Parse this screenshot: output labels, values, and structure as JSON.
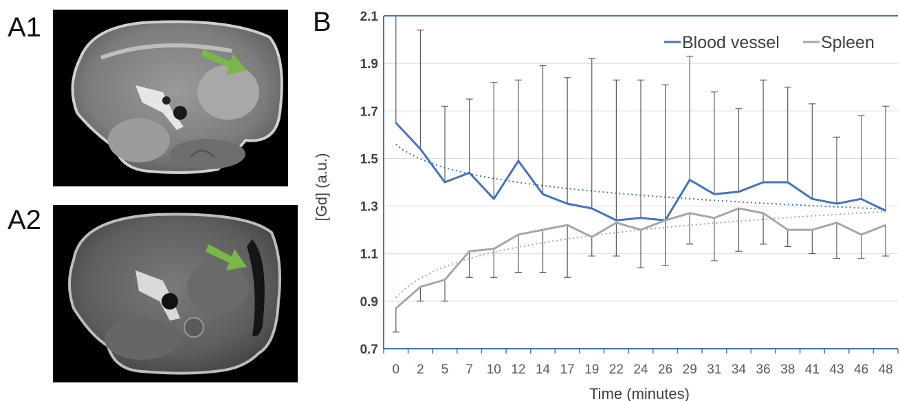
{
  "panels": {
    "a1_label": "A1",
    "a2_label": "A2",
    "b_label": "B"
  },
  "colors": {
    "blood_vessel": "#4472C4",
    "spleen": "#A6A6A6",
    "arrow": "#7AB648",
    "error_bar": "#595959"
  },
  "chart_data": {
    "type": "line",
    "title": "",
    "xlabel": "Time (minutes)",
    "ylabel": "[Gd] (a.u.)",
    "categories": [
      "0",
      "2",
      "5",
      "7",
      "10",
      "12",
      "14",
      "17",
      "19",
      "22",
      "24",
      "26",
      "29",
      "31",
      "34",
      "36",
      "38",
      "41",
      "43",
      "46",
      "48"
    ],
    "ylim": [
      0.7,
      2.1
    ],
    "yticks": [
      "0.7",
      "0.9",
      "1.1",
      "1.3",
      "1.5",
      "1.7",
      "1.9",
      "2.1"
    ],
    "grid": "horizontal",
    "legend_position": "top-right",
    "series": [
      {
        "name": "Blood vessel",
        "color": "#4472C4",
        "values": [
          1.65,
          1.54,
          1.4,
          1.44,
          1.33,
          1.49,
          1.35,
          1.31,
          1.29,
          1.24,
          1.25,
          1.24,
          1.41,
          1.35,
          1.36,
          1.4,
          1.4,
          1.33,
          1.31,
          1.33,
          1.28
        ],
        "error_upper": [
          2.1,
          2.04,
          1.72,
          1.75,
          1.82,
          1.83,
          1.89,
          1.84,
          1.92,
          1.83,
          1.83,
          1.81,
          1.93,
          1.78,
          1.71,
          1.83,
          1.8,
          1.73,
          1.59,
          1.68,
          1.72
        ],
        "trendline": "dotted"
      },
      {
        "name": "Spleen",
        "color": "#A6A6A6",
        "values": [
          0.87,
          0.96,
          0.99,
          1.11,
          1.12,
          1.18,
          1.2,
          1.22,
          1.17,
          1.23,
          1.2,
          1.24,
          1.27,
          1.25,
          1.29,
          1.27,
          1.2,
          1.2,
          1.23,
          1.18,
          1.22
        ],
        "error_lower": [
          0.77,
          0.9,
          0.9,
          1.0,
          1.0,
          1.02,
          1.02,
          1.0,
          1.09,
          1.09,
          1.04,
          1.05,
          1.14,
          1.07,
          1.11,
          1.14,
          1.13,
          1.1,
          1.08,
          1.08,
          1.09
        ],
        "trendline": "dotted"
      }
    ]
  }
}
